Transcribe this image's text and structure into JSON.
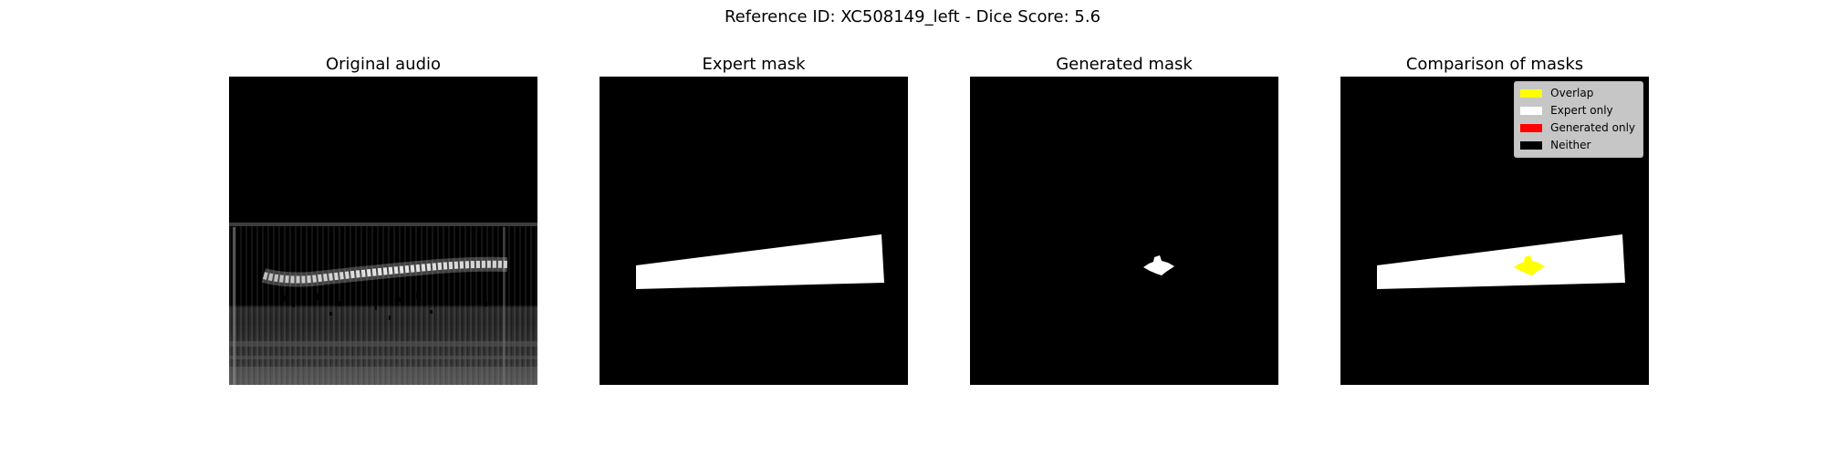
{
  "suptitle": "Reference ID: XC508149_left - Dice Score: 5.6",
  "panels": [
    {
      "title": "Original audio"
    },
    {
      "title": "Expert mask"
    },
    {
      "title": "Generated mask"
    },
    {
      "title": "Comparison of masks"
    }
  ],
  "legend": {
    "items": [
      {
        "label": "Overlap",
        "color": "#ffff00"
      },
      {
        "label": "Expert only",
        "color": "#ffffff"
      },
      {
        "label": "Generated only",
        "color": "#ff0000"
      },
      {
        "label": "Neither",
        "color": "#000000"
      }
    ]
  },
  "colors": {
    "background": "#000000",
    "mask": "#ffffff",
    "overlap": "#ffff00"
  }
}
